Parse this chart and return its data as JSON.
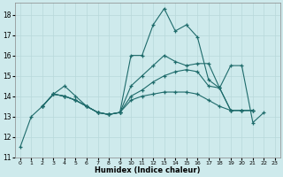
{
  "xlabel": "Humidex (Indice chaleur)",
  "background_color": "#ceeaec",
  "grid_color": "#b8d8da",
  "line_color": "#1e6b6b",
  "xlim": [
    -0.5,
    23.5
  ],
  "ylim": [
    11,
    18.6
  ],
  "yticks": [
    11,
    12,
    13,
    14,
    15,
    16,
    17,
    18
  ],
  "xticks": [
    0,
    1,
    2,
    3,
    4,
    5,
    6,
    7,
    8,
    9,
    10,
    11,
    12,
    13,
    14,
    15,
    16,
    17,
    18,
    19,
    20,
    21,
    22,
    23
  ],
  "lines": [
    {
      "x": [
        0,
        1,
        2,
        3,
        4,
        5,
        6,
        7,
        8,
        9,
        10,
        11,
        12,
        13,
        14,
        15,
        16,
        17,
        18,
        19,
        20,
        21,
        22
      ],
      "y": [
        11.5,
        13.0,
        13.5,
        14.1,
        14.5,
        14.0,
        13.5,
        13.2,
        13.1,
        13.2,
        16.0,
        16.0,
        17.5,
        18.3,
        17.2,
        17.5,
        16.9,
        14.8,
        14.4,
        15.5,
        15.5,
        12.7,
        13.2
      ]
    },
    {
      "x": [
        2,
        3,
        4,
        5,
        6,
        7,
        8,
        9,
        10,
        11,
        12,
        13,
        14,
        15,
        16,
        17,
        18,
        19,
        20,
        21
      ],
      "y": [
        13.5,
        14.1,
        14.0,
        13.8,
        13.5,
        13.2,
        13.1,
        13.2,
        14.5,
        15.0,
        15.5,
        16.0,
        15.7,
        15.5,
        15.6,
        15.6,
        14.4,
        13.3,
        13.3,
        13.3
      ]
    },
    {
      "x": [
        2,
        3,
        4,
        5,
        6,
        7,
        8,
        9,
        10,
        11,
        12,
        13,
        14,
        15,
        16,
        17,
        18,
        19,
        20,
        21
      ],
      "y": [
        13.5,
        14.1,
        14.0,
        13.8,
        13.5,
        13.2,
        13.1,
        13.2,
        14.0,
        14.3,
        14.7,
        15.0,
        15.2,
        15.3,
        15.2,
        14.5,
        14.4,
        13.3,
        13.3,
        13.3
      ]
    },
    {
      "x": [
        2,
        3,
        4,
        5,
        6,
        7,
        8,
        9,
        10,
        11,
        12,
        13,
        14,
        15,
        16,
        17,
        18,
        19,
        20,
        21
      ],
      "y": [
        13.5,
        14.1,
        14.0,
        13.8,
        13.5,
        13.2,
        13.1,
        13.2,
        13.8,
        14.0,
        14.1,
        14.2,
        14.2,
        14.2,
        14.1,
        13.8,
        13.5,
        13.3,
        13.3,
        13.3
      ]
    }
  ]
}
